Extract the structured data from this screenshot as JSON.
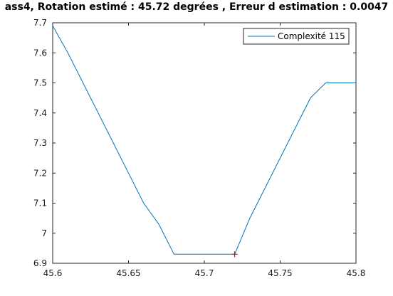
{
  "chart_data": {
    "type": "line",
    "title": "ass4, Rotation estimé : 45.72 degrées , Erreur d estimation : 0.0047",
    "xlabel": "",
    "ylabel": "",
    "xlim": [
      45.6,
      45.8
    ],
    "ylim": [
      6.9,
      7.7
    ],
    "x_ticks": [
      "45.6",
      "45.65",
      "45.7",
      "45.75",
      "45.8"
    ],
    "y_ticks": [
      "6.9",
      "7",
      "7.1",
      "7.2",
      "7.3",
      "7.4",
      "7.5",
      "7.6",
      "7.7"
    ],
    "grid": false,
    "legend_position": "top-right",
    "series": [
      {
        "name": "Complexité 115",
        "color": "#0072bd",
        "x": [
          45.6,
          45.61,
          45.62,
          45.63,
          45.64,
          45.65,
          45.66,
          45.67,
          45.68,
          45.69,
          45.7,
          45.71,
          45.72,
          45.73,
          45.74,
          45.75,
          45.76,
          45.77,
          45.78,
          45.79,
          45.8
        ],
        "y": [
          7.69,
          7.6,
          7.5,
          7.4,
          7.3,
          7.2,
          7.1,
          7.03,
          6.93,
          6.93,
          6.93,
          6.93,
          6.93,
          7.05,
          7.15,
          7.25,
          7.35,
          7.45,
          7.5,
          7.5,
          7.5
        ]
      }
    ],
    "marker": {
      "x": 45.72,
      "y": 6.93,
      "symbol": "+",
      "color": "#ff0000"
    }
  }
}
